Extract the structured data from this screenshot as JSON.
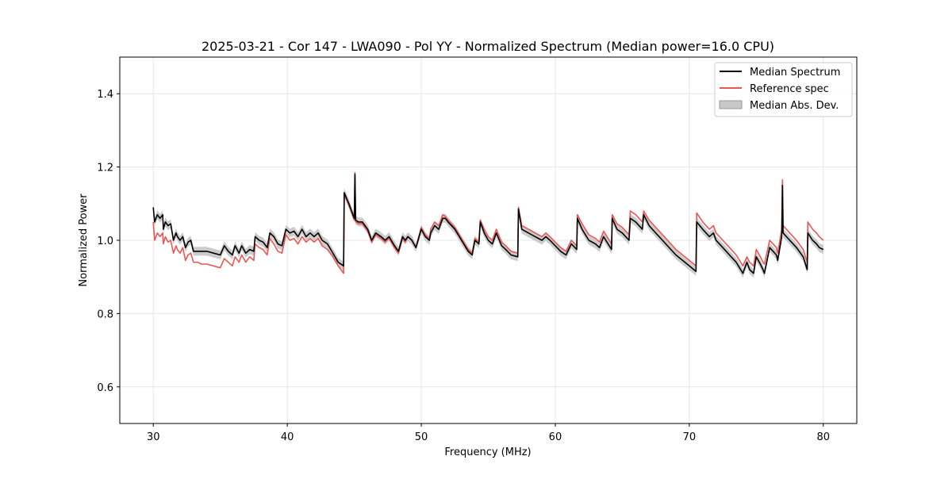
{
  "chart_data": {
    "type": "line",
    "title": "2025-03-21 - Cor 147 - LWA090 - Pol YY - Normalized Spectrum (Median power=16.0 CPU)",
    "xlabel": "Frequency (MHz)",
    "ylabel": "Normalized Power",
    "xlim": [
      27.5,
      82.5
    ],
    "ylim": [
      0.5,
      1.5
    ],
    "grid": true,
    "legend_position": "top-right",
    "x_ticks": [
      30,
      40,
      50,
      60,
      70,
      80
    ],
    "x_tick_labels": [
      "30",
      "40",
      "50",
      "60",
      "70",
      "80"
    ],
    "y_ticks": [
      0.6,
      0.8,
      1.0,
      1.2,
      1.4
    ],
    "y_tick_labels": [
      "0.6",
      "0.8",
      "1.0",
      "1.2",
      "1.4"
    ],
    "legend": [
      {
        "label": "Median Spectrum",
        "kind": "line",
        "color": "#000000"
      },
      {
        "label": "Reference spec",
        "kind": "line",
        "color": "#ee5555"
      },
      {
        "label": "Median Abs. Dev.",
        "kind": "band",
        "color": "#c8c8c8"
      }
    ],
    "band_halfwidth": 0.012,
    "series": [
      {
        "name": "Median Spectrum",
        "color": "#000000",
        "x": [
          30.0,
          30.1,
          30.3,
          30.5,
          30.7,
          30.75,
          30.9,
          31.1,
          31.3,
          31.5,
          31.7,
          31.8,
          32.0,
          32.2,
          32.4,
          32.6,
          32.8,
          33.0,
          33.2,
          33.3,
          33.6,
          34.0,
          34.5,
          35.0,
          35.3,
          35.6,
          35.9,
          36.1,
          36.4,
          36.6,
          36.9,
          37.2,
          37.5,
          37.6,
          37.9,
          38.2,
          38.5,
          38.7,
          39.0,
          39.3,
          39.6,
          39.9,
          40.2,
          40.5,
          40.8,
          41.1,
          41.4,
          41.7,
          42.0,
          42.3,
          42.6,
          43.0,
          43.4,
          43.8,
          44.2,
          44.25,
          44.6,
          45.0,
          45.05,
          45.1,
          45.3,
          45.6,
          46.0,
          46.3,
          46.6,
          47.0,
          47.3,
          47.6,
          48.0,
          48.3,
          48.6,
          48.8,
          49.0,
          49.3,
          49.6,
          50.0,
          50.3,
          50.6,
          50.7,
          51.0,
          51.3,
          51.6,
          51.8,
          52.0,
          52.5,
          53.0,
          53.5,
          53.8,
          54.0,
          54.3,
          54.4,
          54.7,
          55.0,
          55.3,
          55.6,
          56.0,
          56.3,
          56.7,
          57.2,
          57.25,
          57.5,
          58.0,
          58.5,
          59.0,
          59.3,
          59.6,
          60.0,
          60.4,
          60.8,
          61.2,
          61.6,
          61.65,
          62.0,
          62.5,
          63.0,
          63.3,
          63.6,
          64.2,
          64.25,
          64.6,
          65.0,
          65.5,
          65.6,
          66.0,
          66.5,
          66.6,
          67.0,
          67.5,
          68.0,
          69.0,
          70.0,
          70.5,
          70.55,
          71.0,
          71.5,
          71.8,
          72.0,
          72.5,
          73.0,
          73.5,
          74.0,
          74.3,
          74.5,
          74.8,
          75.0,
          75.3,
          75.5,
          75.6,
          76.0,
          76.5,
          76.6,
          76.9,
          76.95,
          77.0,
          77.5,
          78.0,
          78.5,
          78.8,
          78.85,
          79.2,
          79.5,
          79.7,
          80.0
        ],
        "values": [
          1.09,
          1.05,
          1.07,
          1.06,
          1.07,
          1.03,
          1.05,
          1.04,
          1.045,
          1.0,
          1.02,
          1.01,
          1.0,
          1.01,
          0.98,
          0.995,
          1.0,
          0.97,
          0.97,
          0.97,
          0.97,
          0.97,
          0.965,
          0.96,
          0.985,
          0.97,
          0.96,
          0.985,
          0.965,
          0.985,
          0.965,
          0.975,
          0.97,
          1.01,
          1.0,
          0.995,
          0.98,
          1.02,
          1.01,
          0.99,
          0.985,
          1.03,
          1.02,
          1.025,
          1.01,
          1.03,
          1.01,
          1.02,
          1.01,
          1.02,
          1.0,
          0.99,
          0.965,
          0.94,
          0.93,
          1.13,
          1.1,
          1.06,
          1.18,
          1.055,
          1.05,
          1.05,
          1.03,
          1.0,
          1.02,
          1.01,
          1.0,
          1.01,
          0.985,
          0.97,
          1.01,
          1.0,
          1.01,
          1.0,
          0.98,
          1.03,
          1.01,
          1.0,
          1.02,
          1.04,
          1.03,
          1.06,
          1.06,
          1.05,
          1.03,
          1.0,
          0.97,
          0.96,
          1.0,
          0.99,
          1.05,
          1.02,
          1.0,
          0.99,
          1.02,
          0.985,
          0.975,
          0.96,
          0.955,
          1.085,
          1.03,
          1.02,
          1.01,
          1.0,
          1.01,
          1.0,
          0.985,
          0.97,
          0.96,
          0.99,
          0.975,
          1.06,
          1.03,
          1.0,
          0.99,
          0.98,
          1.01,
          0.975,
          1.06,
          1.03,
          1.02,
          1.0,
          1.06,
          1.05,
          1.03,
          1.07,
          1.04,
          1.02,
          1.0,
          0.96,
          0.93,
          0.915,
          1.05,
          1.03,
          1.01,
          1.02,
          1.0,
          0.98,
          0.96,
          0.94,
          0.91,
          0.94,
          0.92,
          0.91,
          0.955,
          0.935,
          0.92,
          0.91,
          0.98,
          0.96,
          0.945,
          1.01,
          1.15,
          1.02,
          1.0,
          0.98,
          0.955,
          0.92,
          1.02,
          1.0,
          0.99,
          0.98,
          0.975
        ]
      },
      {
        "name": "Reference spec",
        "color": "#ee5555",
        "x": [
          30.0,
          30.1,
          30.3,
          30.5,
          30.7,
          30.75,
          30.9,
          31.1,
          31.3,
          31.5,
          31.7,
          31.8,
          32.0,
          32.2,
          32.4,
          32.6,
          32.8,
          33.0,
          33.2,
          33.3,
          33.6,
          34.0,
          34.5,
          35.0,
          35.3,
          35.6,
          35.9,
          36.1,
          36.4,
          36.6,
          36.9,
          37.2,
          37.5,
          37.6,
          37.9,
          38.2,
          38.5,
          38.7,
          39.0,
          39.3,
          39.6,
          39.9,
          40.2,
          40.5,
          40.8,
          41.1,
          41.4,
          41.7,
          42.0,
          42.3,
          42.6,
          43.0,
          43.4,
          43.8,
          44.2,
          44.25,
          44.6,
          45.0,
          45.05,
          45.1,
          45.3,
          45.6,
          46.0,
          46.3,
          46.6,
          47.0,
          47.3,
          47.6,
          48.0,
          48.3,
          48.6,
          48.8,
          49.0,
          49.3,
          49.6,
          50.0,
          50.3,
          50.6,
          50.7,
          51.0,
          51.3,
          51.6,
          51.8,
          52.0,
          52.5,
          53.0,
          53.5,
          53.8,
          54.0,
          54.3,
          54.4,
          54.7,
          55.0,
          55.3,
          55.6,
          56.0,
          56.3,
          56.7,
          57.2,
          57.25,
          57.5,
          58.0,
          58.5,
          59.0,
          59.3,
          59.6,
          60.0,
          60.4,
          60.8,
          61.2,
          61.6,
          61.65,
          62.0,
          62.5,
          63.0,
          63.3,
          63.6,
          64.2,
          64.25,
          64.6,
          65.0,
          65.5,
          65.6,
          66.0,
          66.5,
          66.6,
          67.0,
          67.5,
          68.0,
          69.0,
          70.0,
          70.5,
          70.55,
          71.0,
          71.5,
          71.8,
          72.0,
          72.5,
          73.0,
          73.5,
          74.0,
          74.3,
          74.5,
          74.8,
          75.0,
          75.3,
          75.5,
          75.6,
          76.0,
          76.5,
          76.6,
          76.9,
          76.95,
          77.0,
          77.5,
          78.0,
          78.5,
          78.8,
          78.85,
          79.2,
          79.5,
          79.7,
          80.0
        ],
        "values": [
          1.05,
          1.0,
          1.02,
          1.01,
          1.02,
          0.99,
          1.01,
          0.995,
          1.0,
          0.965,
          0.985,
          0.975,
          0.965,
          0.98,
          0.945,
          0.96,
          0.965,
          0.94,
          0.94,
          0.94,
          0.935,
          0.935,
          0.93,
          0.925,
          0.95,
          0.94,
          0.93,
          0.955,
          0.94,
          0.96,
          0.94,
          0.955,
          0.945,
          0.99,
          0.98,
          0.975,
          0.96,
          1.005,
          0.99,
          0.97,
          0.965,
          1.015,
          1.0,
          1.005,
          0.99,
          1.01,
          0.995,
          1.005,
          0.995,
          1.005,
          0.985,
          0.975,
          0.955,
          0.93,
          0.91,
          1.125,
          1.095,
          1.055,
          1.185,
          1.05,
          1.045,
          1.045,
          1.025,
          0.995,
          1.015,
          1.005,
          0.995,
          1.005,
          0.98,
          0.965,
          1.005,
          0.995,
          1.01,
          1.0,
          0.98,
          1.035,
          1.015,
          1.005,
          1.03,
          1.05,
          1.04,
          1.07,
          1.065,
          1.055,
          1.035,
          1.005,
          0.975,
          0.965,
          1.005,
          0.995,
          1.055,
          1.03,
          1.01,
          1.0,
          1.03,
          0.995,
          0.985,
          0.97,
          0.965,
          1.09,
          1.04,
          1.03,
          1.02,
          1.01,
          1.02,
          1.01,
          0.995,
          0.98,
          0.97,
          1.0,
          0.985,
          1.07,
          1.045,
          1.015,
          1.005,
          0.995,
          1.025,
          0.99,
          1.07,
          1.045,
          1.035,
          1.015,
          1.08,
          1.07,
          1.05,
          1.08,
          1.055,
          1.035,
          1.015,
          0.975,
          0.945,
          0.93,
          1.075,
          1.05,
          1.03,
          1.04,
          1.02,
          1.0,
          0.98,
          0.96,
          0.93,
          0.955,
          0.94,
          0.93,
          0.975,
          0.955,
          0.94,
          0.935,
          1.0,
          0.98,
          0.965,
          1.03,
          1.165,
          1.04,
          1.02,
          1.0,
          0.975,
          0.94,
          1.05,
          1.03,
          1.02,
          1.01,
          1.0
        ]
      }
    ]
  }
}
